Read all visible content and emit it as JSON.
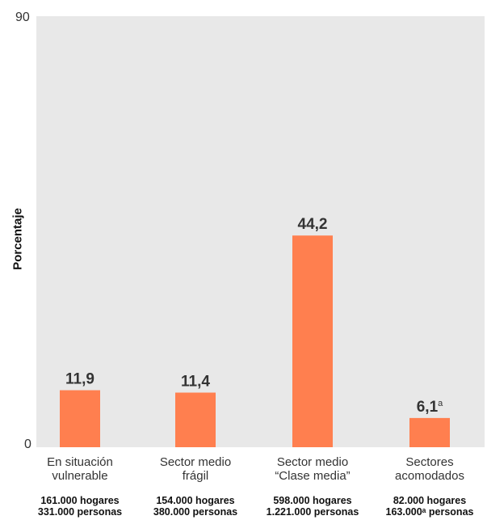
{
  "chart_data": {
    "type": "bar",
    "ylabel": "Porcentaje",
    "ylim": [
      0,
      90
    ],
    "yticks": [
      "90",
      "0"
    ],
    "categories": [
      "En situación\nvulnerable",
      "Sector medio\nfrágil",
      "Sector medio\n“Clase media”",
      "Sectores\nacomodados"
    ],
    "values": [
      11.9,
      11.4,
      44.2,
      6.1
    ],
    "value_labels": [
      "11,9",
      "11,4",
      "44,2",
      "6,1"
    ],
    "value_label_note": [
      "",
      "",
      "",
      "a"
    ],
    "sublabels": [
      "161.000 hogares\n331.000 personas",
      "154.000 hogares\n380.000 personas",
      "598.000 hogares\n1.221.000 personas",
      "82.000 hogares\n163.000ᵃ personas"
    ],
    "colors": {
      "bar": "#ff7f4f",
      "plot_bg": "#e8e8e8"
    },
    "grid": false
  }
}
